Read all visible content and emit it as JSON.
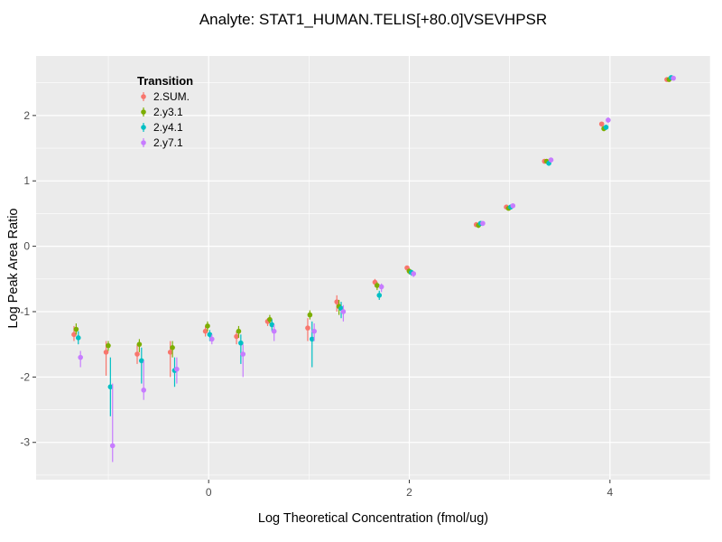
{
  "chart_data": {
    "type": "scatter",
    "title": "Analyte: STAT1_HUMAN.TELIS[+80.0]VSEVHPSR",
    "xlabel": "Log Theoretical Concentration (fmol/ug)",
    "ylabel": "Log Peak Area Ratio",
    "xlim": [
      -1.72,
      5.0
    ],
    "ylim": [
      -3.57,
      2.91
    ],
    "xticks": [
      0,
      2,
      4
    ],
    "yticks": [
      -3,
      -2,
      -1,
      0,
      1,
      2
    ],
    "xticks_minor": [
      -1,
      1,
      3,
      5
    ],
    "yticks_minor": [
      -3.5,
      -2.5,
      -1.5,
      -0.5,
      0.5,
      1.5,
      2.5
    ],
    "grid": true,
    "legend_title": "Transition",
    "legend_position": "inside-top-left",
    "panel_bg": "#EBEBEB",
    "grid_color": "#FFFFFF",
    "tick_color": "#333333",
    "tick_label_color": "#4D4D4D",
    "series": [
      {
        "name": "2.SUM.",
        "color": "#F8766D",
        "points": [
          [
            -1.31,
            -1.35,
            -1.45,
            -1.22
          ],
          [
            -0.99,
            -1.62,
            -1.98,
            -1.45
          ],
          [
            -0.68,
            -1.65,
            -1.8,
            -1.5
          ],
          [
            -0.35,
            -1.62,
            -2.0,
            -1.45
          ],
          [
            0.0,
            -1.3,
            -1.38,
            -1.22
          ],
          [
            0.31,
            -1.38,
            -1.5,
            -1.3
          ],
          [
            0.62,
            -1.15,
            -1.22,
            -1.1
          ],
          [
            1.02,
            -1.25,
            -1.45,
            -1.1
          ],
          [
            1.31,
            -0.85,
            -1.0,
            -0.75
          ],
          [
            1.69,
            -0.55,
            -0.62,
            -0.5
          ],
          [
            2.01,
            -0.33,
            -0.38,
            -0.3
          ],
          [
            2.7,
            0.33,
            0.3,
            0.37
          ],
          [
            3.0,
            0.6,
            0.57,
            0.63
          ],
          [
            3.38,
            1.3,
            1.27,
            1.33
          ],
          [
            3.95,
            1.87,
            1.83,
            1.9
          ],
          [
            4.6,
            2.55,
            2.52,
            2.58
          ]
        ]
      },
      {
        "name": "2.y3.1",
        "color": "#7CAE00",
        "points": [
          [
            -1.31,
            -1.27,
            -1.35,
            -1.18
          ],
          [
            -0.99,
            -1.52,
            -1.6,
            -1.45
          ],
          [
            -0.68,
            -1.5,
            -1.62,
            -1.42
          ],
          [
            -0.35,
            -1.55,
            -1.7,
            -1.45
          ],
          [
            0.0,
            -1.22,
            -1.3,
            -1.15
          ],
          [
            0.31,
            -1.3,
            -1.4,
            -1.22
          ],
          [
            0.62,
            -1.12,
            -1.18,
            -1.05
          ],
          [
            1.02,
            -1.05,
            -1.12,
            -0.98
          ],
          [
            1.31,
            -0.92,
            -1.05,
            -0.82
          ],
          [
            1.69,
            -0.6,
            -0.67,
            -0.55
          ],
          [
            2.01,
            -0.38,
            -0.43,
            -0.34
          ],
          [
            2.7,
            0.32,
            0.28,
            0.36
          ],
          [
            3.0,
            0.58,
            0.55,
            0.61
          ],
          [
            3.38,
            1.3,
            1.27,
            1.33
          ],
          [
            3.95,
            1.8,
            1.76,
            1.84
          ],
          [
            4.6,
            2.55,
            2.52,
            2.58
          ]
        ]
      },
      {
        "name": "2.y4.1",
        "color": "#00BFC4",
        "points": [
          [
            -1.31,
            -1.4,
            -1.5,
            -1.3
          ],
          [
            -0.99,
            -2.15,
            -2.6,
            -1.7
          ],
          [
            -0.68,
            -1.75,
            -2.1,
            -1.55
          ],
          [
            -0.35,
            -1.9,
            -2.15,
            -1.7
          ],
          [
            0.0,
            -1.35,
            -1.45,
            -1.28
          ],
          [
            0.31,
            -1.48,
            -1.8,
            -1.35
          ],
          [
            0.62,
            -1.2,
            -1.3,
            -1.12
          ],
          [
            1.02,
            -1.42,
            -1.85,
            -1.15
          ],
          [
            1.31,
            -0.95,
            -1.1,
            -0.85
          ],
          [
            1.69,
            -0.75,
            -0.82,
            -0.68
          ],
          [
            2.01,
            -0.4,
            -0.45,
            -0.36
          ],
          [
            2.7,
            0.35,
            0.31,
            0.38
          ],
          [
            3.0,
            0.6,
            0.57,
            0.63
          ],
          [
            3.38,
            1.27,
            1.23,
            1.3
          ],
          [
            3.95,
            1.82,
            1.78,
            1.86
          ],
          [
            4.6,
            2.58,
            2.55,
            2.61
          ]
        ]
      },
      {
        "name": "2.y7.1",
        "color": "#C77CFF",
        "points": [
          [
            -1.31,
            -1.7,
            -1.85,
            -1.6
          ],
          [
            -0.99,
            -3.05,
            -3.3,
            -2.1
          ],
          [
            -0.68,
            -2.2,
            -2.35,
            -1.75
          ],
          [
            -0.35,
            -1.88,
            -2.1,
            -1.7
          ],
          [
            0.0,
            -1.42,
            -1.5,
            -1.35
          ],
          [
            0.31,
            -1.65,
            -2.0,
            -1.5
          ],
          [
            0.62,
            -1.3,
            -1.45,
            -1.2
          ],
          [
            1.02,
            -1.3,
            -1.45,
            -1.18
          ],
          [
            1.31,
            -1.0,
            -1.15,
            -0.9
          ],
          [
            1.69,
            -0.62,
            -0.7,
            -0.57
          ],
          [
            2.01,
            -0.42,
            -0.47,
            -0.38
          ],
          [
            2.7,
            0.35,
            0.31,
            0.38
          ],
          [
            3.0,
            0.62,
            0.58,
            0.65
          ],
          [
            3.38,
            1.32,
            1.28,
            1.35
          ],
          [
            3.95,
            1.93,
            1.89,
            1.97
          ],
          [
            4.6,
            2.57,
            2.54,
            2.6
          ]
        ]
      }
    ]
  }
}
